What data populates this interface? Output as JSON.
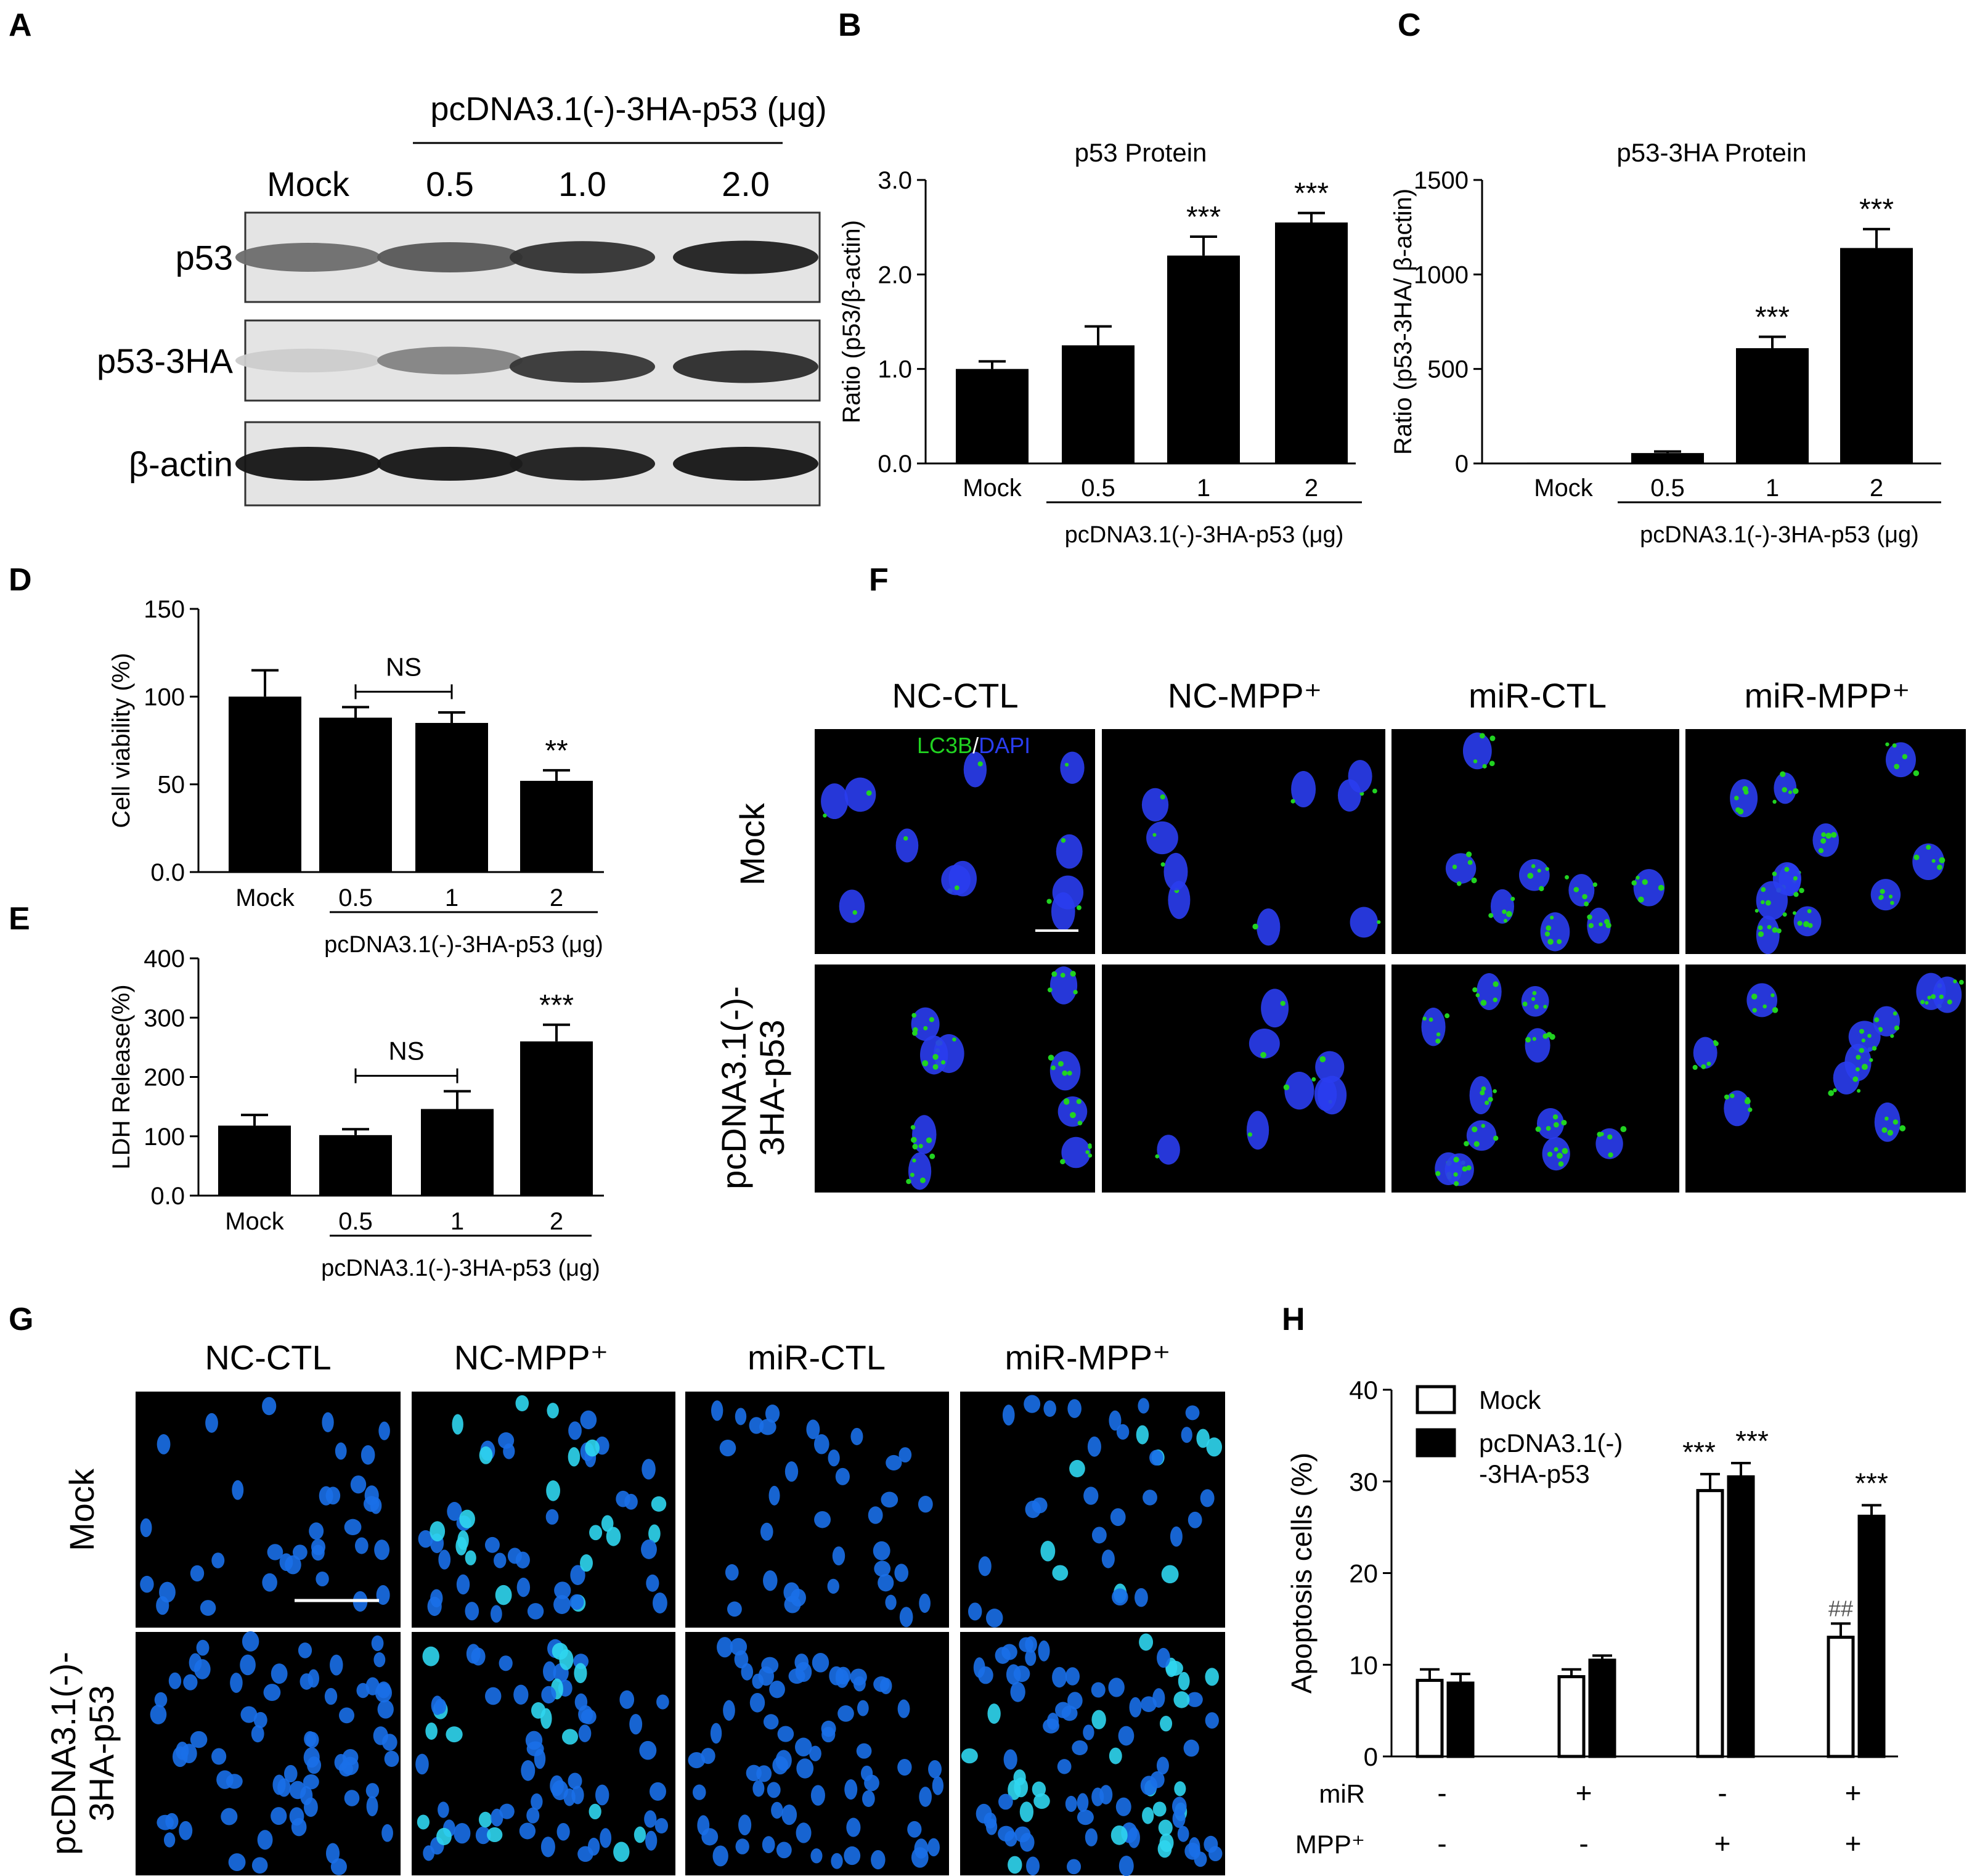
{
  "panels": {
    "A": "A",
    "B": "B",
    "C": "C",
    "D": "D",
    "E": "E",
    "F": "F",
    "G": "G",
    "H": "H"
  },
  "panelA": {
    "header": "pcDNA3.1(-)-3HA-p53 (μg)",
    "lanes": [
      "Mock",
      "0.5",
      "1.0",
      "2.0"
    ],
    "bands": [
      "p53",
      "p53-3HA",
      "β-actin"
    ],
    "intensity": {
      "p53": [
        0.55,
        0.65,
        0.82,
        0.9
      ],
      "p53-3HA": [
        0.12,
        0.45,
        0.8,
        0.85
      ],
      "β-actin": [
        0.95,
        0.95,
        0.92,
        0.95
      ]
    }
  },
  "panelF": {
    "cols": [
      "NC-CTL",
      "NC-MPP⁺",
      "miR-CTL",
      "miR-MPP⁺"
    ],
    "rows": [
      "Mock",
      "pcDNA3.1(-)-\n3HA-p53"
    ],
    "stain_green": "LC3B",
    "stain_sep": "/",
    "stain_blue": "DAPI",
    "colors": {
      "green": "#21d321",
      "blue": "#2a3df0"
    }
  },
  "panelG": {
    "cols": [
      "NC-CTL",
      "NC-MPP⁺",
      "miR-CTL",
      "miR-MPP⁺"
    ],
    "rows": [
      "Mock",
      "pcDNA3.1(-)-\n3HA-p53"
    ],
    "colors": {
      "nucleus": "#1a6fe8",
      "bright": "#2fd6f0"
    }
  },
  "chart_data": [
    {
      "id": "B",
      "type": "bar",
      "title": "p53 Protein",
      "ylabel": "Ratio (p53/β-actin)",
      "categories": [
        "Mock",
        "0.5",
        "1",
        "2"
      ],
      "values": [
        1.0,
        1.25,
        2.2,
        2.55
      ],
      "errors": [
        0.08,
        0.2,
        0.2,
        0.1
      ],
      "sig": [
        "",
        "",
        "***",
        "***"
      ],
      "ylim": [
        0,
        3
      ],
      "yticks": [
        "0.0",
        "1.0",
        "2.0",
        "3.0"
      ],
      "group_label": "pcDNA3.1(-)-3HA-p53 (μg)"
    },
    {
      "id": "C",
      "type": "bar",
      "title": "p53-3HA Protein",
      "ylabel": "Ratio (p53-3HA/ β-actin)",
      "categories": [
        "Mock",
        "0.5",
        "1",
        "2"
      ],
      "values": [
        5,
        55,
        610,
        1140
      ],
      "errors": [
        0,
        8,
        60,
        100
      ],
      "sig": [
        "",
        "",
        "***",
        "***"
      ],
      "ylim": [
        0,
        1500
      ],
      "yticks": [
        "0",
        "500",
        "1000",
        "1500"
      ],
      "group_label": "pcDNA3.1(-)-3HA-p53 (μg)"
    },
    {
      "id": "D",
      "type": "bar",
      "title": "",
      "ylabel": "Cell viability (%)",
      "categories": [
        "Mock",
        "0.5",
        "1",
        "2"
      ],
      "values": [
        100,
        88,
        85,
        52
      ],
      "errors": [
        15,
        6,
        6,
        6
      ],
      "sig": [
        "",
        "",
        "",
        "**"
      ],
      "bracket": {
        "from": 1,
        "to": 2,
        "label": "NS"
      },
      "ylim": [
        0,
        150
      ],
      "yticks": [
        "0.0",
        "50",
        "100",
        "150"
      ],
      "group_label": "pcDNA3.1(-)-3HA-p53 (μg)"
    },
    {
      "id": "E",
      "type": "bar",
      "title": "",
      "ylabel": "LDH Release(%)",
      "categories": [
        "Mock",
        "0.5",
        "1",
        "2"
      ],
      "values": [
        118,
        102,
        146,
        260
      ],
      "errors": [
        18,
        10,
        30,
        28
      ],
      "sig": [
        "",
        "",
        "",
        "***"
      ],
      "bracket": {
        "from": 1,
        "to": 2,
        "label": "NS"
      },
      "ylim": [
        0,
        400
      ],
      "yticks": [
        "0.0",
        "100",
        "200",
        "300",
        "400"
      ],
      "group_label": "pcDNA3.1(-)-3HA-p53 (μg)"
    },
    {
      "id": "H",
      "type": "bar",
      "title": "",
      "ylabel": "Apoptosis cells (%)",
      "series": [
        {
          "name": "Mock",
          "values": [
            8.3,
            8.7,
            29.0,
            13.0
          ],
          "errors": [
            1.2,
            0.8,
            1.8,
            1.5
          ],
          "sig": [
            "",
            "",
            "***",
            "##"
          ]
        },
        {
          "name": "pcDNA3.1(-)\n-3HA-p53",
          "values": [
            8.0,
            10.5,
            30.5,
            26.2
          ],
          "errors": [
            1.0,
            0.5,
            1.5,
            1.2
          ],
          "sig": [
            "",
            "",
            "***",
            "***"
          ]
        }
      ],
      "rows": [
        {
          "label": "miR",
          "values": [
            "-",
            "+",
            "-",
            "+"
          ]
        },
        {
          "label": "MPP⁺",
          "values": [
            "-",
            "-",
            "+",
            "+"
          ]
        }
      ],
      "ylim": [
        0,
        40
      ],
      "yticks": [
        "0",
        "10",
        "20",
        "30",
        "40"
      ],
      "legend": "top-left"
    }
  ]
}
